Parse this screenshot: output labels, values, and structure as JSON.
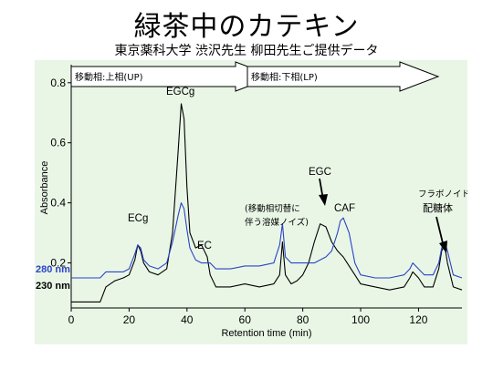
{
  "header": {
    "title": "緑茶中のカテキン",
    "subtitle": "東京薬科大学  渋沢先生  柳田先生ご提供データ"
  },
  "mobile_phase": {
    "upper": "移動相:上相(UP)",
    "lower": "移動相:下相(LP)"
  },
  "annotations": {
    "egcg": "EGCg",
    "ecg": "ECg",
    "ec": "EC",
    "egc": "EGC",
    "caf": "CAF",
    "solvent_noise_1": "(移動相切替に",
    "solvent_noise_2": "伴う溶媒ノイズ)",
    "flavonoid_1": "フラボノイド",
    "flavonoid_2": "配糖体"
  },
  "colors": {
    "series_280": "#2b43c8",
    "series_230": "#000000",
    "panel_bg": "#e9f6e6"
  },
  "chart_data": {
    "type": "line",
    "title": "",
    "xlabel": "Retention time (min)",
    "ylabel": "Absorbance",
    "xlim": [
      0,
      135
    ],
    "ylim": [
      0.05,
      0.86
    ],
    "xticks": [
      0,
      20,
      40,
      60,
      80,
      100,
      120
    ],
    "yticks": [
      0.2,
      0.4,
      0.6,
      0.8
    ],
    "grid": false,
    "series": [
      {
        "name": "230 nm",
        "color": "#000000",
        "x": [
          0,
          10,
          12,
          15,
          18,
          20,
          22,
          23,
          24,
          25,
          27,
          30,
          33,
          35,
          37,
          38,
          39,
          40,
          41,
          43,
          45,
          47,
          48,
          50,
          55,
          60,
          65,
          70,
          72,
          73,
          74,
          76,
          78,
          80,
          82,
          84,
          86,
          88,
          90,
          92,
          94,
          96,
          98,
          100,
          105,
          110,
          115,
          117,
          118,
          120,
          122,
          125,
          127,
          128,
          129,
          130,
          132,
          135
        ],
        "y": [
          0.07,
          0.07,
          0.12,
          0.14,
          0.15,
          0.16,
          0.21,
          0.26,
          0.24,
          0.2,
          0.17,
          0.16,
          0.18,
          0.3,
          0.58,
          0.73,
          0.68,
          0.45,
          0.3,
          0.25,
          0.26,
          0.22,
          0.16,
          0.12,
          0.12,
          0.13,
          0.12,
          0.13,
          0.16,
          0.27,
          0.16,
          0.13,
          0.14,
          0.16,
          0.2,
          0.27,
          0.33,
          0.32,
          0.27,
          0.24,
          0.22,
          0.19,
          0.16,
          0.13,
          0.12,
          0.11,
          0.12,
          0.15,
          0.17,
          0.15,
          0.12,
          0.12,
          0.18,
          0.24,
          0.26,
          0.2,
          0.12,
          0.11
        ]
      },
      {
        "name": "280 nm",
        "color": "#2b43c8",
        "x": [
          0,
          10,
          12,
          15,
          18,
          20,
          22,
          23,
          24,
          25,
          27,
          30,
          33,
          35,
          37,
          38,
          39,
          40,
          41,
          43,
          45,
          47,
          48,
          50,
          55,
          60,
          65,
          70,
          72,
          73,
          74,
          76,
          78,
          80,
          82,
          84,
          86,
          88,
          90,
          92,
          93,
          94,
          96,
          98,
          100,
          105,
          110,
          115,
          117,
          118,
          120,
          122,
          125,
          127,
          128,
          129,
          130,
          132,
          135
        ],
        "y": [
          0.15,
          0.15,
          0.17,
          0.17,
          0.17,
          0.18,
          0.23,
          0.26,
          0.25,
          0.21,
          0.19,
          0.18,
          0.2,
          0.27,
          0.36,
          0.4,
          0.38,
          0.31,
          0.25,
          0.21,
          0.2,
          0.2,
          0.2,
          0.18,
          0.18,
          0.19,
          0.19,
          0.2,
          0.26,
          0.33,
          0.22,
          0.2,
          0.2,
          0.2,
          0.2,
          0.2,
          0.21,
          0.22,
          0.24,
          0.3,
          0.34,
          0.35,
          0.3,
          0.2,
          0.16,
          0.15,
          0.15,
          0.16,
          0.18,
          0.2,
          0.18,
          0.16,
          0.16,
          0.2,
          0.25,
          0.27,
          0.24,
          0.16,
          0.15
        ]
      }
    ]
  }
}
